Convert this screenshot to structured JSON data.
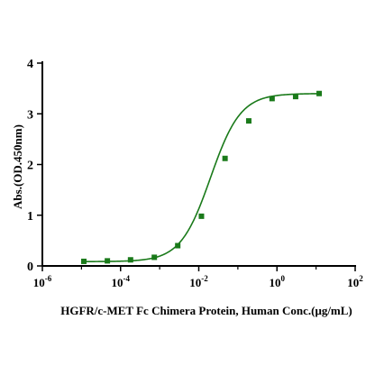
{
  "chart_data": {
    "type": "scatter",
    "xlabel": "HGFR/c-MET Fc Chimera Protein, Human Conc.(μg/mL)",
    "ylabel": "Abs.(OD.450nm)",
    "x_scale": "log",
    "xlim": [
      1e-06,
      100
    ],
    "ylim": [
      0,
      4
    ],
    "x_ticks": [
      {
        "value": 1e-06,
        "base": "10",
        "exp": "-6"
      },
      {
        "value": 0.0001,
        "base": "10",
        "exp": "-4"
      },
      {
        "value": 0.01,
        "base": "10",
        "exp": "-2"
      },
      {
        "value": 1,
        "base": "10",
        "exp": "0"
      },
      {
        "value": 100,
        "base": "10",
        "exp": "2"
      }
    ],
    "y_ticks": [
      0,
      1,
      2,
      3,
      4
    ],
    "grid": false,
    "colors": {
      "series": "#1a7a1a",
      "axis": "#000000"
    },
    "series": [
      {
        "points": [
          {
            "x": 1.15e-05,
            "y": 0.09
          },
          {
            "x": 4.6e-05,
            "y": 0.1
          },
          {
            "x": 0.00018,
            "y": 0.12
          },
          {
            "x": 0.00073,
            "y": 0.17
          },
          {
            "x": 0.0029,
            "y": 0.4
          },
          {
            "x": 0.0117,
            "y": 0.98
          },
          {
            "x": 0.047,
            "y": 2.12
          },
          {
            "x": 0.19,
            "y": 2.86
          },
          {
            "x": 0.75,
            "y": 3.3
          },
          {
            "x": 3,
            "y": 3.34
          },
          {
            "x": 12,
            "y": 3.4
          }
        ],
        "fit": {
          "model": "4PL",
          "bottom": 0.085,
          "top": 3.4,
          "ec50": 0.02,
          "hill": 1.13
        }
      }
    ]
  }
}
